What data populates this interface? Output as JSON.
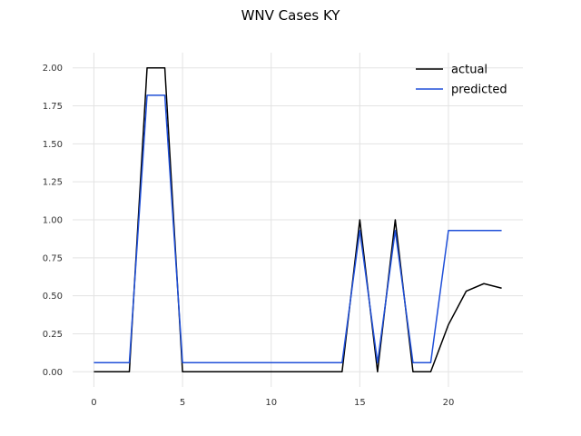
{
  "chart_data": {
    "type": "line",
    "title": "WNV Cases KY",
    "xlabel": "",
    "ylabel": "",
    "xlim": [
      -1.2,
      24.2
    ],
    "ylim": [
      -0.1,
      2.1
    ],
    "x_ticks": [
      0,
      5,
      10,
      15,
      20
    ],
    "x_tick_labels": [
      "0",
      "5",
      "10",
      "15",
      "20"
    ],
    "y_ticks": [
      0.0,
      0.25,
      0.5,
      0.75,
      1.0,
      1.25,
      1.5,
      1.75,
      2.0
    ],
    "y_tick_labels": [
      "0.00",
      "0.25",
      "0.50",
      "0.75",
      "1.00",
      "1.25",
      "1.50",
      "1.75",
      "2.00"
    ],
    "grid": true,
    "legend_position": "top-right",
    "series": [
      {
        "name": "actual",
        "color": "#000000",
        "x": [
          0,
          1,
          2,
          3,
          4,
          5,
          6,
          7,
          8,
          9,
          10,
          11,
          12,
          13,
          14,
          15,
          16,
          17,
          18,
          19,
          20,
          21,
          22,
          23
        ],
        "values": [
          0,
          0,
          0,
          2,
          2,
          0,
          0,
          0,
          0,
          0,
          0,
          0,
          0,
          0,
          0,
          1,
          0,
          1,
          0,
          0,
          0.31,
          0.53,
          0.58,
          0.55
        ]
      },
      {
        "name": "predicted",
        "color": "#1f4fd8",
        "x": [
          0,
          1,
          2,
          3,
          4,
          5,
          6,
          7,
          8,
          9,
          10,
          11,
          12,
          13,
          14,
          15,
          16,
          17,
          18,
          19,
          20,
          21,
          22,
          23
        ],
        "values": [
          0.06,
          0.06,
          0.06,
          1.82,
          1.82,
          0.06,
          0.06,
          0.06,
          0.06,
          0.06,
          0.06,
          0.06,
          0.06,
          0.06,
          0.06,
          0.93,
          0.06,
          0.93,
          0.06,
          0.06,
          0.93,
          0.93,
          0.93,
          0.93
        ]
      }
    ]
  }
}
